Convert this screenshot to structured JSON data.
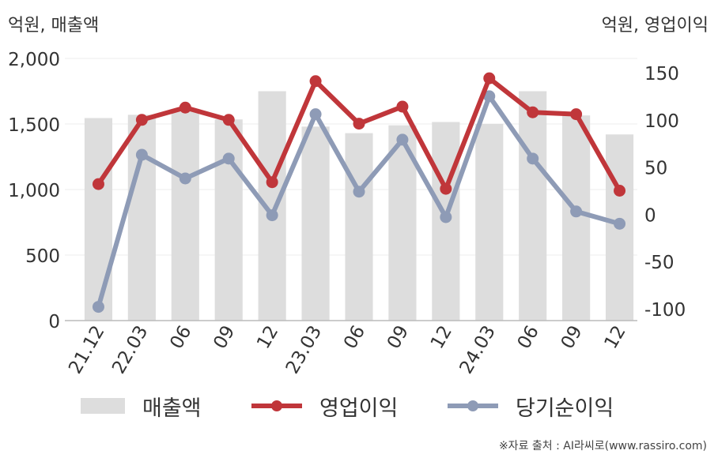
{
  "chart_data": {
    "type": "bar+line",
    "categories": [
      "21.12",
      "22.03",
      "06",
      "09",
      "12",
      "23.03",
      "06",
      "09",
      "12",
      "24.03",
      "06",
      "09",
      "12"
    ],
    "left_axis": {
      "unit": "억원, 매출액",
      "ylim": [
        0,
        2000
      ],
      "ticks": [
        "0",
        "500",
        "1,000",
        "1,500",
        "2,000"
      ],
      "tick_values": [
        0,
        500,
        1000,
        1500,
        2000
      ]
    },
    "right_axis": {
      "unit": "억원, 영업이익",
      "ylim": [
        -115,
        165
      ],
      "ticks": [
        "-100",
        "-50",
        "0",
        "50",
        "100",
        "150"
      ],
      "tick_values": [
        -100,
        -50,
        0,
        50,
        100,
        150
      ]
    },
    "series": [
      {
        "name": "매출액",
        "type": "bar",
        "axis": "left",
        "color": "#dddddd",
        "values": [
          1545,
          1570,
          1615,
          1535,
          1750,
          1480,
          1430,
          1490,
          1515,
          1500,
          1750,
          1565,
          1420
        ]
      },
      {
        "name": "영업이익",
        "type": "line",
        "axis": "right",
        "color": "#c0363a",
        "values": [
          32,
          100,
          113,
          100,
          34,
          141,
          96,
          114,
          27,
          144,
          108,
          106,
          25
        ]
      },
      {
        "name": "당기순이익",
        "type": "line",
        "axis": "right",
        "color": "#8e9bb6",
        "values": [
          -98,
          63,
          38,
          59,
          -1,
          106,
          24,
          79,
          -3,
          125,
          59,
          3,
          -10
        ]
      }
    ],
    "grid": true,
    "legend": "bottom"
  },
  "source": "※자료 출처 : AI라씨로(www.rassiro.com)"
}
